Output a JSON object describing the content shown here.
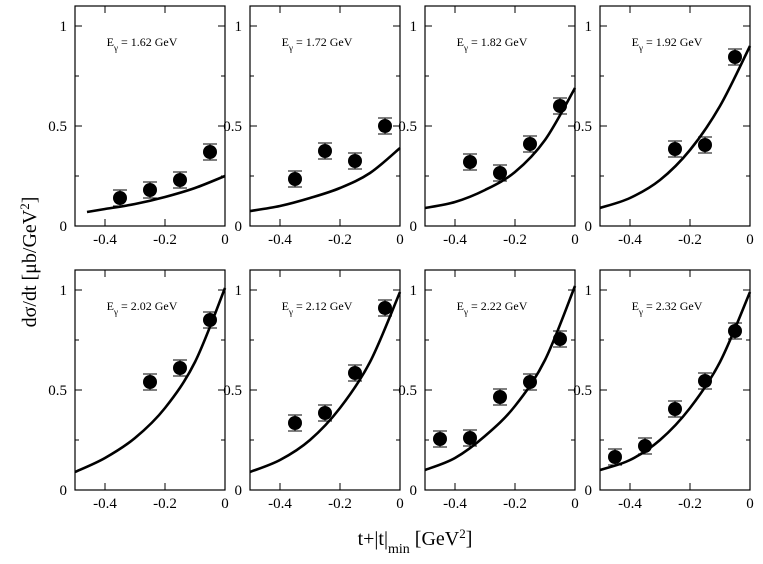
{
  "figure": {
    "ylabel_main": "dσ/dt [μb/GeV",
    "ylabel_sup": "2",
    "ylabel_end": "]",
    "xlabel_main": "t+|t|",
    "xlabel_sub": "min",
    "xlabel_mid": " [GeV",
    "xlabel_sup": "2",
    "xlabel_end": "]"
  },
  "chart_data": [
    {
      "type": "scatter",
      "label_prefix": "E",
      "label_sub": "γ",
      "label_value": "= 1.62 GeV",
      "xlim": [
        -0.5,
        0
      ],
      "ylim": [
        0,
        1.1
      ],
      "xticks": [
        -0.4,
        -0.2,
        0
      ],
      "xtick_labels": [
        "-0.4",
        "-0.2",
        "0"
      ],
      "yticks": [
        0,
        0.5,
        1
      ],
      "ytick_labels": [
        "0",
        "0.5",
        "1"
      ],
      "points": [
        {
          "x": -0.35,
          "y": 0.14,
          "err": 0.04
        },
        {
          "x": -0.25,
          "y": 0.18,
          "err": 0.04
        },
        {
          "x": -0.15,
          "y": 0.23,
          "err": 0.04
        },
        {
          "x": -0.05,
          "y": 0.37,
          "err": 0.04
        }
      ],
      "curve": {
        "x": [
          -0.46,
          -0.4,
          -0.3,
          -0.2,
          -0.1,
          0
        ],
        "y": [
          0.07,
          0.085,
          0.11,
          0.145,
          0.19,
          0.25
        ]
      }
    },
    {
      "type": "scatter",
      "label_prefix": "E",
      "label_sub": "γ",
      "label_value": "= 1.72 GeV",
      "xlim": [
        -0.5,
        0
      ],
      "ylim": [
        0,
        1.1
      ],
      "xticks": [
        -0.4,
        -0.2,
        0
      ],
      "xtick_labels": [
        "-0.4",
        "-0.2",
        "0"
      ],
      "yticks": [
        0,
        0.5,
        1
      ],
      "ytick_labels": [
        "0",
        "0.5",
        "1"
      ],
      "points": [
        {
          "x": -0.35,
          "y": 0.235,
          "err": 0.04
        },
        {
          "x": -0.25,
          "y": 0.375,
          "err": 0.04
        },
        {
          "x": -0.15,
          "y": 0.325,
          "err": 0.04
        },
        {
          "x": -0.05,
          "y": 0.5,
          "err": 0.04
        }
      ],
      "curve": {
        "x": [
          -0.5,
          -0.4,
          -0.3,
          -0.2,
          -0.1,
          0
        ],
        "y": [
          0.075,
          0.1,
          0.14,
          0.19,
          0.265,
          0.39
        ]
      }
    },
    {
      "type": "scatter",
      "label_prefix": "E",
      "label_sub": "γ",
      "label_value": "= 1.82 GeV",
      "xlim": [
        -0.5,
        0
      ],
      "ylim": [
        0,
        1.1
      ],
      "xticks": [
        -0.4,
        -0.2,
        0
      ],
      "xtick_labels": [
        "-0.4",
        "-0.2",
        "0"
      ],
      "yticks": [
        0,
        0.5,
        1
      ],
      "ytick_labels": [
        "0",
        "0.5",
        "1"
      ],
      "points": [
        {
          "x": -0.35,
          "y": 0.32,
          "err": 0.04
        },
        {
          "x": -0.25,
          "y": 0.265,
          "err": 0.04
        },
        {
          "x": -0.15,
          "y": 0.41,
          "err": 0.04
        },
        {
          "x": -0.05,
          "y": 0.6,
          "err": 0.04
        }
      ],
      "curve": {
        "x": [
          -0.5,
          -0.4,
          -0.3,
          -0.2,
          -0.1,
          0
        ],
        "y": [
          0.09,
          0.12,
          0.18,
          0.27,
          0.43,
          0.69
        ]
      }
    },
    {
      "type": "scatter",
      "label_prefix": "E",
      "label_sub": "γ",
      "label_value": "= 1.92 GeV",
      "xlim": [
        -0.5,
        0
      ],
      "ylim": [
        0,
        1.1
      ],
      "xticks": [
        -0.4,
        -0.2,
        0
      ],
      "xtick_labels": [
        "-0.4",
        "-0.2",
        "0"
      ],
      "yticks": [
        0,
        0.5,
        1
      ],
      "ytick_labels": [
        "0",
        "0.5",
        "1"
      ],
      "points": [
        {
          "x": -0.25,
          "y": 0.385,
          "err": 0.04
        },
        {
          "x": -0.15,
          "y": 0.405,
          "err": 0.04
        },
        {
          "x": -0.05,
          "y": 0.845,
          "err": 0.04
        }
      ],
      "curve": {
        "x": [
          -0.5,
          -0.4,
          -0.3,
          -0.2,
          -0.1,
          0
        ],
        "y": [
          0.09,
          0.14,
          0.23,
          0.38,
          0.6,
          0.9
        ]
      }
    },
    {
      "type": "scatter",
      "label_prefix": "E",
      "label_sub": "γ",
      "label_value": "= 2.02 GeV",
      "xlim": [
        -0.5,
        0
      ],
      "ylim": [
        0,
        1.1
      ],
      "xticks": [
        -0.4,
        -0.2,
        0
      ],
      "xtick_labels": [
        "-0.4",
        "-0.2",
        "0"
      ],
      "yticks": [
        0,
        0.5,
        1
      ],
      "ytick_labels": [
        "0",
        "0.5",
        "1"
      ],
      "points": [
        {
          "x": -0.25,
          "y": 0.54,
          "err": 0.04
        },
        {
          "x": -0.15,
          "y": 0.61,
          "err": 0.04
        },
        {
          "x": -0.05,
          "y": 0.85,
          "err": 0.04
        }
      ],
      "curve": {
        "x": [
          -0.5,
          -0.4,
          -0.3,
          -0.2,
          -0.1,
          0
        ],
        "y": [
          0.09,
          0.16,
          0.26,
          0.41,
          0.64,
          1.01
        ]
      }
    },
    {
      "type": "scatter",
      "label_prefix": "E",
      "label_sub": "γ",
      "label_value": "= 2.12 GeV",
      "xlim": [
        -0.5,
        0
      ],
      "ylim": [
        0,
        1.1
      ],
      "xticks": [
        -0.4,
        -0.2,
        0
      ],
      "xtick_labels": [
        "-0.4",
        "-0.2",
        "0"
      ],
      "yticks": [
        0,
        0.5,
        1
      ],
      "ytick_labels": [
        "0",
        "0.5",
        "1"
      ],
      "points": [
        {
          "x": -0.35,
          "y": 0.335,
          "err": 0.04
        },
        {
          "x": -0.25,
          "y": 0.385,
          "err": 0.04
        },
        {
          "x": -0.15,
          "y": 0.585,
          "err": 0.04
        },
        {
          "x": -0.05,
          "y": 0.91,
          "err": 0.04
        }
      ],
      "curve": {
        "x": [
          -0.5,
          -0.4,
          -0.3,
          -0.2,
          -0.1,
          0
        ],
        "y": [
          0.09,
          0.15,
          0.25,
          0.41,
          0.64,
          0.99
        ]
      }
    },
    {
      "type": "scatter",
      "label_prefix": "E",
      "label_sub": "γ",
      "label_value": "= 2.22 GeV",
      "xlim": [
        -0.5,
        0
      ],
      "ylim": [
        0,
        1.1
      ],
      "xticks": [
        -0.4,
        -0.2,
        0
      ],
      "xtick_labels": [
        "-0.4",
        "-0.2",
        "0"
      ],
      "yticks": [
        0,
        0.5,
        1
      ],
      "ytick_labels": [
        "0",
        "0.5",
        "1"
      ],
      "points": [
        {
          "x": -0.45,
          "y": 0.255,
          "err": 0.04
        },
        {
          "x": -0.35,
          "y": 0.26,
          "err": 0.04
        },
        {
          "x": -0.25,
          "y": 0.465,
          "err": 0.04
        },
        {
          "x": -0.15,
          "y": 0.54,
          "err": 0.04
        },
        {
          "x": -0.05,
          "y": 0.755,
          "err": 0.04
        }
      ],
      "curve": {
        "x": [
          -0.5,
          -0.4,
          -0.3,
          -0.2,
          -0.1,
          0
        ],
        "y": [
          0.1,
          0.16,
          0.27,
          0.42,
          0.65,
          1.02
        ]
      }
    },
    {
      "type": "scatter",
      "label_prefix": "E",
      "label_sub": "γ",
      "label_value": "= 2.32 GeV",
      "xlim": [
        -0.5,
        0
      ],
      "ylim": [
        0,
        1.1
      ],
      "xticks": [
        -0.4,
        -0.2,
        0
      ],
      "xtick_labels": [
        "-0.4",
        "-0.2",
        "0"
      ],
      "yticks": [
        0,
        0.5,
        1
      ],
      "ytick_labels": [
        "0",
        "0.5",
        "1"
      ],
      "points": [
        {
          "x": -0.45,
          "y": 0.165,
          "err": 0.04
        },
        {
          "x": -0.35,
          "y": 0.22,
          "err": 0.04
        },
        {
          "x": -0.25,
          "y": 0.405,
          "err": 0.04
        },
        {
          "x": -0.15,
          "y": 0.545,
          "err": 0.04
        },
        {
          "x": -0.05,
          "y": 0.795,
          "err": 0.04
        }
      ],
      "curve": {
        "x": [
          -0.5,
          -0.4,
          -0.3,
          -0.2,
          -0.1,
          0
        ],
        "y": [
          0.1,
          0.15,
          0.25,
          0.41,
          0.64,
          0.99
        ]
      }
    }
  ]
}
